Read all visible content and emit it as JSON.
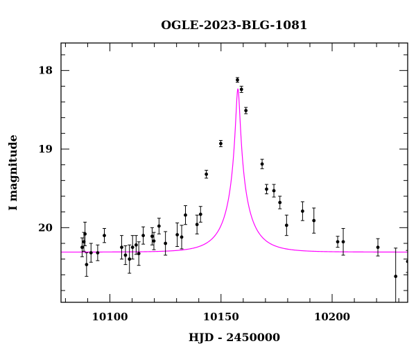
{
  "chart_data": {
    "type": "scatter",
    "title": "OGLE-2023-BLG-1081",
    "xlabel": "HJD - 2450000",
    "ylabel": "I magnitude",
    "xlim": [
      10078,
      10234
    ],
    "ylim": [
      20.95,
      17.65
    ],
    "y_inverted": true,
    "x_ticks": [
      10100,
      10150,
      10200
    ],
    "x_tick_labels": [
      "10100",
      "10150",
      "10200"
    ],
    "y_ticks": [
      18,
      19,
      20
    ],
    "y_tick_labels": [
      "18",
      "19",
      "20"
    ],
    "x_minor_step": 10,
    "y_minor_step": 0.2,
    "grid": false,
    "legend": "none",
    "colors": {
      "points": "#000000",
      "model": "#ff00ff"
    },
    "series": [
      {
        "kind": "points",
        "x": [
          10087.5,
          10088.3,
          10088.8,
          10089.5,
          10091.5,
          10094.5,
          10097.5,
          10105.3,
          10107.0,
          10108.8,
          10110.2,
          10111.8,
          10113.0,
          10115.0,
          10119.0,
          10119.8,
          10122.1,
          10125.0,
          10130.3,
          10132.3,
          10134.0,
          10139.2,
          10140.8,
          10143.4,
          10149.9,
          10157.4,
          10159.2,
          10161.2,
          10168.5,
          10170.5,
          10173.8,
          10176.5,
          10179.5,
          10186.7,
          10191.8,
          10202.5,
          10205.0,
          10220.6,
          10228.6,
          10234.0
        ],
        "y": [
          20.25,
          20.18,
          20.08,
          20.47,
          20.32,
          20.32,
          20.1,
          20.25,
          20.35,
          20.4,
          20.25,
          20.22,
          20.33,
          20.1,
          20.11,
          20.17,
          19.98,
          20.2,
          20.09,
          20.12,
          19.84,
          19.96,
          19.83,
          19.32,
          18.93,
          18.12,
          18.24,
          18.51,
          19.19,
          19.51,
          19.53,
          19.68,
          19.97,
          19.79,
          19.91,
          20.18,
          20.18,
          20.25,
          20.62,
          20.43
        ],
        "err": [
          0.12,
          0.12,
          0.15,
          0.15,
          0.12,
          0.1,
          0.09,
          0.15,
          0.12,
          0.18,
          0.15,
          0.12,
          0.15,
          0.11,
          0.11,
          0.11,
          0.1,
          0.15,
          0.15,
          0.15,
          0.12,
          0.12,
          0.1,
          0.05,
          0.04,
          0.03,
          0.04,
          0.04,
          0.06,
          0.06,
          0.08,
          0.08,
          0.13,
          0.12,
          0.16,
          0.07,
          0.17,
          0.11,
          0.36,
          0.14
        ]
      },
      {
        "kind": "model",
        "t0": 10157.6,
        "u0": 0.069,
        "tE": 12.5,
        "I_source": 21.23,
        "I_blend": 20.92
      }
    ]
  }
}
